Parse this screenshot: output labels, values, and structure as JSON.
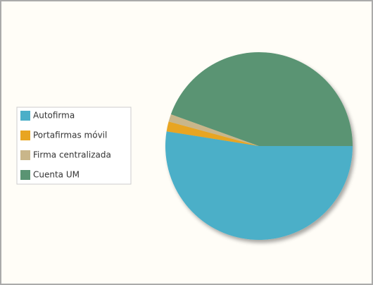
{
  "chart_data": {
    "type": "pie",
    "categories": [
      "Autofirma",
      "Portafirmas móvil",
      "Firma centralizada",
      "Cuenta UM"
    ],
    "values": [
      52.5,
      1.7,
      1.3,
      44.5
    ],
    "colors": [
      "#4bafc8",
      "#e8a521",
      "#c9b68a",
      "#5a9473"
    ],
    "legend": "left"
  }
}
